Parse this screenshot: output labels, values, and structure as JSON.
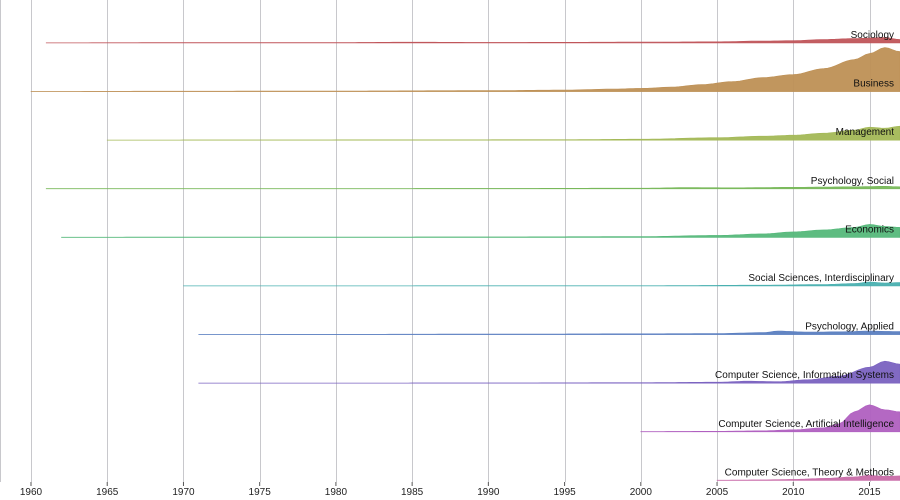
{
  "chart_data": {
    "type": "area",
    "subtype": "ridgeline",
    "title": "",
    "xlabel": "",
    "ylabel": "",
    "xlim": [
      1960,
      2017
    ],
    "x_ticks": [
      1960,
      1965,
      1970,
      1975,
      1980,
      1985,
      1990,
      1995,
      2000,
      2005,
      2010,
      2015
    ],
    "grid": true,
    "labels_position": "right-end",
    "series": [
      {
        "name": "Sociology",
        "color": "#c0555a",
        "points": [
          [
            1961,
            0.2
          ],
          [
            1970,
            0.4
          ],
          [
            1975,
            0.5
          ],
          [
            1980,
            0.5
          ],
          [
            1985,
            0.8
          ],
          [
            1990,
            0.6
          ],
          [
            1995,
            0.7
          ],
          [
            2000,
            0.9
          ],
          [
            2005,
            1.2
          ],
          [
            2008,
            2.0
          ],
          [
            2010,
            2.3
          ],
          [
            2012,
            3.5
          ],
          [
            2014,
            4.5
          ],
          [
            2016,
            5.5
          ],
          [
            2017,
            3.5
          ]
        ]
      },
      {
        "name": "Business",
        "color": "#be9055",
        "points": [
          [
            1960,
            0.2
          ],
          [
            1970,
            0.4
          ],
          [
            1980,
            0.6
          ],
          [
            1990,
            1.0
          ],
          [
            1995,
            1.5
          ],
          [
            1998,
            2.5
          ],
          [
            2000,
            3.2
          ],
          [
            2002,
            4.5
          ],
          [
            2004,
            7.0
          ],
          [
            2006,
            10.0
          ],
          [
            2008,
            14.0
          ],
          [
            2010,
            17.0
          ],
          [
            2012,
            23.0
          ],
          [
            2014,
            32.0
          ],
          [
            2015,
            38.0
          ],
          [
            2016,
            44.0
          ],
          [
            2017,
            40.0
          ]
        ]
      },
      {
        "name": "Management",
        "color": "#a3b856",
        "points": [
          [
            1965,
            0.2
          ],
          [
            1975,
            0.3
          ],
          [
            1985,
            0.4
          ],
          [
            1995,
            0.5
          ],
          [
            2000,
            1.0
          ],
          [
            2005,
            2.5
          ],
          [
            2008,
            4.0
          ],
          [
            2010,
            5.0
          ],
          [
            2012,
            7.0
          ],
          [
            2014,
            10.0
          ],
          [
            2015,
            13.0
          ],
          [
            2016,
            12.0
          ],
          [
            2017,
            14.0
          ]
        ]
      },
      {
        "name": "Psychology, Social",
        "color": "#78b85a",
        "points": [
          [
            1961,
            0.2
          ],
          [
            1970,
            0.3
          ],
          [
            1980,
            0.3
          ],
          [
            1990,
            0.4
          ],
          [
            2000,
            0.6
          ],
          [
            2003,
            1.2
          ],
          [
            2006,
            1.0
          ],
          [
            2010,
            1.5
          ],
          [
            2014,
            2.0
          ],
          [
            2016,
            2.5
          ],
          [
            2017,
            2.0
          ]
        ]
      },
      {
        "name": "Economics",
        "color": "#55b87a",
        "points": [
          [
            1962,
            0.2
          ],
          [
            1970,
            0.3
          ],
          [
            1980,
            0.4
          ],
          [
            1990,
            0.5
          ],
          [
            2000,
            0.8
          ],
          [
            2005,
            2.0
          ],
          [
            2008,
            3.5
          ],
          [
            2010,
            5.5
          ],
          [
            2012,
            7.5
          ],
          [
            2014,
            10.0
          ],
          [
            2015,
            13.0
          ],
          [
            2016,
            11.0
          ],
          [
            2017,
            10.0
          ]
        ]
      },
      {
        "name": "Social Sciences, Interdisciplinary",
        "color": "#4ab0b0",
        "points": [
          [
            1970,
            0.2
          ],
          [
            1980,
            0.2
          ],
          [
            1990,
            0.3
          ],
          [
            2000,
            0.3
          ],
          [
            2008,
            0.8
          ],
          [
            2012,
            1.5
          ],
          [
            2014,
            2.5
          ],
          [
            2015,
            4.0
          ],
          [
            2016,
            3.0
          ],
          [
            2017,
            3.5
          ]
        ]
      },
      {
        "name": "Psychology, Applied",
        "color": "#5a7ec0",
        "points": [
          [
            1971,
            0.2
          ],
          [
            1980,
            0.3
          ],
          [
            1990,
            0.5
          ],
          [
            2000,
            0.8
          ],
          [
            2005,
            1.0
          ],
          [
            2008,
            2.0
          ],
          [
            2009,
            3.5
          ],
          [
            2011,
            2.5
          ],
          [
            2013,
            2.8
          ],
          [
            2015,
            3.5
          ],
          [
            2017,
            3.0
          ]
        ]
      },
      {
        "name": "Computer Science, Information Systems",
        "color": "#7a62c0",
        "points": [
          [
            1971,
            0.2
          ],
          [
            1980,
            0.2
          ],
          [
            1990,
            0.3
          ],
          [
            2000,
            0.5
          ],
          [
            2005,
            1.0
          ],
          [
            2007,
            2.0
          ],
          [
            2009,
            1.5
          ],
          [
            2011,
            3.5
          ],
          [
            2013,
            7.0
          ],
          [
            2015,
            16.0
          ],
          [
            2016,
            22.0
          ],
          [
            2017,
            19.0
          ]
        ]
      },
      {
        "name": "Computer Science, Artificial Intelligence",
        "color": "#b060c0",
        "points": [
          [
            2000,
            0.3
          ],
          [
            2005,
            0.5
          ],
          [
            2008,
            1.0
          ],
          [
            2010,
            2.0
          ],
          [
            2012,
            4.0
          ],
          [
            2013,
            8.0
          ],
          [
            2014,
            20.0
          ],
          [
            2015,
            27.0
          ],
          [
            2016,
            22.0
          ],
          [
            2017,
            20.0
          ]
        ]
      },
      {
        "name": "Computer Science, Theory & Methods",
        "color": "#c86aa8",
        "points": [
          [
            2005,
            0.2
          ],
          [
            2008,
            0.5
          ],
          [
            2010,
            1.0
          ],
          [
            2012,
            2.0
          ],
          [
            2014,
            3.5
          ],
          [
            2015,
            5.0
          ],
          [
            2016,
            4.0
          ],
          [
            2017,
            4.5
          ]
        ]
      }
    ]
  }
}
